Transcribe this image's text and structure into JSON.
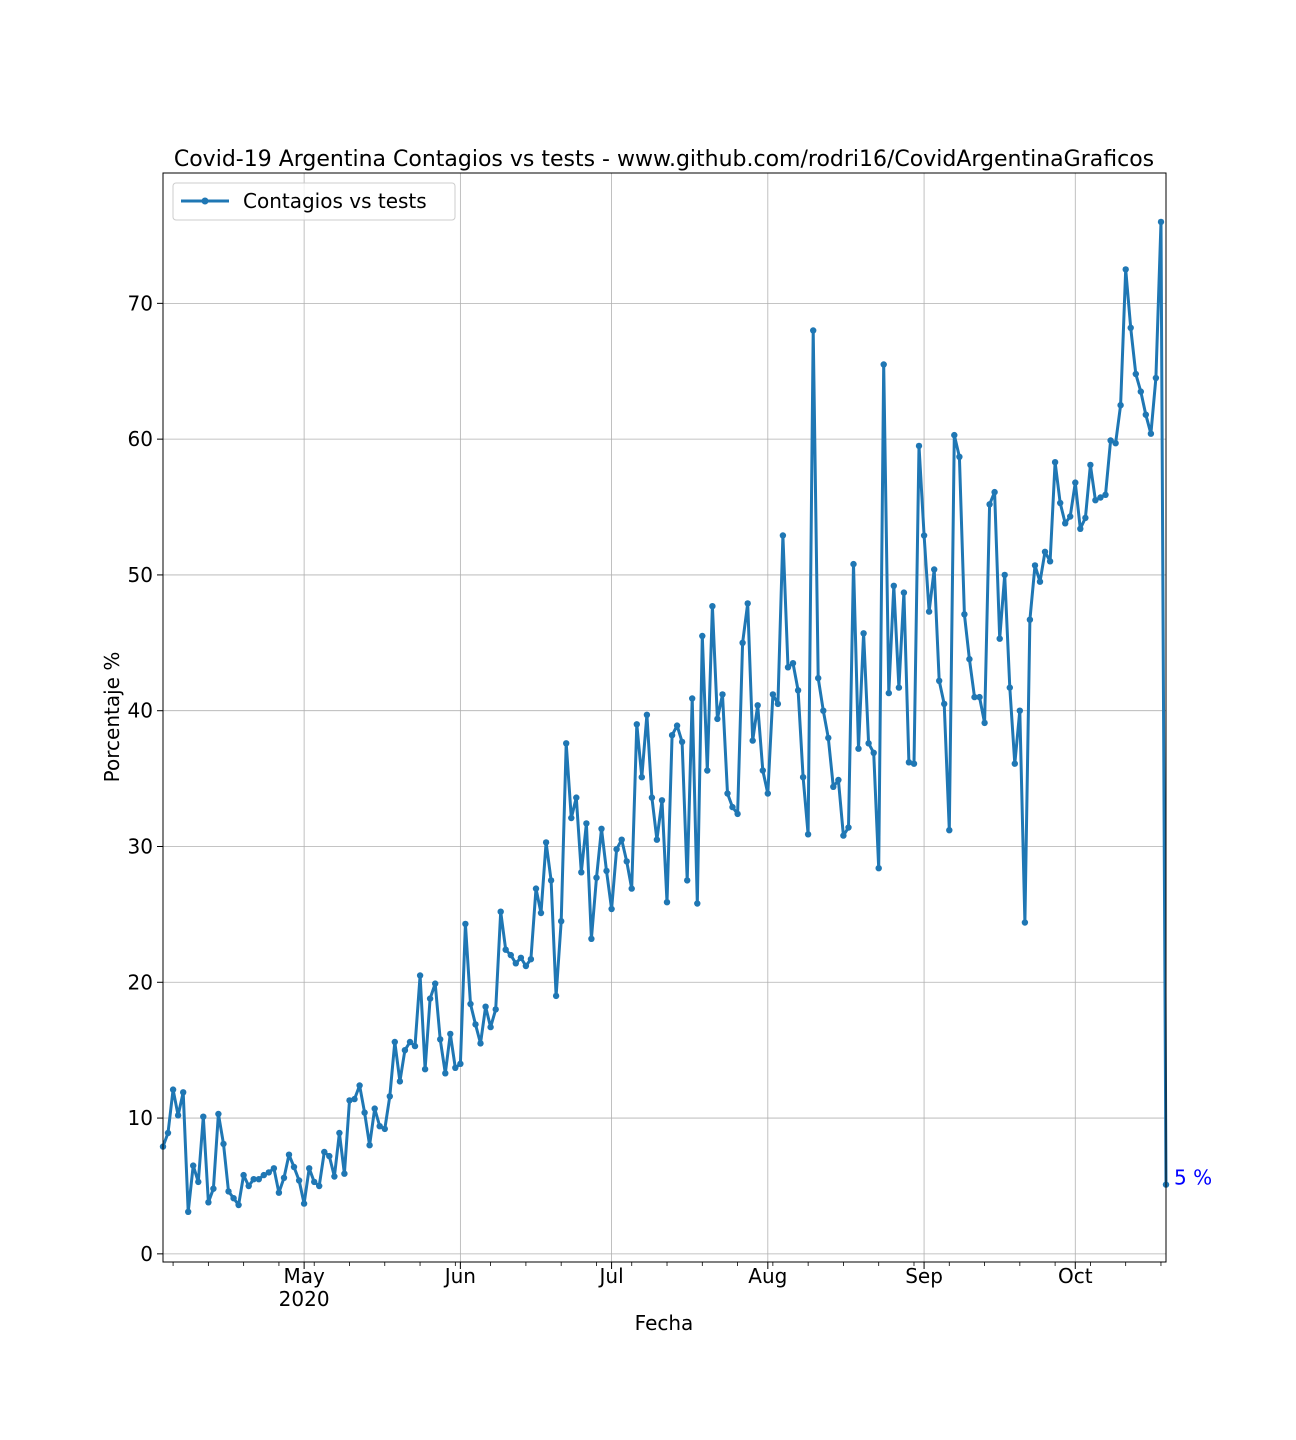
{
  "chart_data": {
    "type": "line",
    "title": "Covid-19 Argentina Contagios vs tests - www.github.com/rodri16/CovidArgentinaGraficos",
    "xlabel": "Fecha",
    "ylabel": "Porcentaje %",
    "x_start": "2020-04-03",
    "x_end": "2020-10-19",
    "ylim": [
      -0.6,
      79.6
    ],
    "yticks": [
      0,
      10,
      20,
      30,
      40,
      50,
      60,
      70
    ],
    "xticks": [
      {
        "date": "2020-05-01",
        "label": "May",
        "sublabel": "2020"
      },
      {
        "date": "2020-06-01",
        "label": "Jun",
        "sublabel": ""
      },
      {
        "date": "2020-07-01",
        "label": "Jul",
        "sublabel": ""
      },
      {
        "date": "2020-08-01",
        "label": "Aug",
        "sublabel": ""
      },
      {
        "date": "2020-09-01",
        "label": "Sep",
        "sublabel": ""
      },
      {
        "date": "2020-10-01",
        "label": "Oct",
        "sublabel": ""
      }
    ],
    "grid": true,
    "legend_position": "top-left",
    "series": [
      {
        "name": "Contagios vs tests",
        "color": "#1f77b4",
        "values": [
          7.9,
          8.9,
          12.1,
          10.2,
          11.9,
          3.1,
          6.5,
          5.3,
          10.1,
          3.8,
          4.8,
          10.3,
          8.1,
          4.6,
          4.1,
          3.6,
          5.8,
          5.0,
          5.5,
          5.5,
          5.8,
          6.0,
          6.3,
          4.5,
          5.6,
          7.3,
          6.4,
          5.4,
          3.7,
          6.3,
          5.3,
          5.0,
          7.5,
          7.2,
          5.7,
          8.9,
          5.9,
          11.3,
          11.4,
          12.4,
          10.4,
          8.0,
          10.7,
          9.4,
          9.2,
          11.6,
          15.6,
          12.7,
          15.0,
          15.6,
          15.3,
          20.5,
          13.6,
          18.8,
          19.9,
          15.8,
          13.3,
          16.2,
          13.7,
          14.0,
          24.3,
          18.4,
          16.9,
          15.5,
          18.2,
          16.7,
          18.0,
          25.2,
          22.4,
          22.0,
          21.4,
          21.8,
          21.2,
          21.7,
          26.9,
          25.1,
          30.3,
          27.5,
          19.0,
          24.5,
          37.6,
          32.1,
          33.6,
          28.1,
          31.7,
          23.2,
          27.7,
          31.3,
          28.2,
          25.4,
          29.8,
          30.5,
          28.9,
          26.9,
          39.0,
          35.1,
          39.7,
          33.6,
          30.5,
          33.4,
          25.9,
          38.2,
          38.9,
          37.7,
          27.5,
          40.9,
          25.8,
          45.5,
          35.6,
          47.7,
          39.4,
          41.2,
          33.9,
          32.9,
          32.4,
          45.0,
          47.9,
          37.8,
          40.4,
          35.6,
          33.9,
          41.2,
          40.5,
          52.9,
          43.2,
          43.5,
          41.5,
          35.1,
          30.9,
          68.0,
          42.4,
          40.0,
          38.0,
          34.4,
          34.9,
          30.8,
          31.4,
          50.8,
          37.2,
          45.7,
          37.6,
          36.9,
          28.4,
          65.5,
          41.3,
          49.2,
          41.7,
          48.7,
          36.2,
          36.1,
          59.5,
          52.9,
          47.3,
          50.4,
          42.2,
          40.5,
          31.2,
          60.3,
          58.7,
          47.1,
          43.8,
          41.0,
          41.0,
          39.1,
          55.2,
          56.1,
          45.3,
          50.0,
          41.7,
          36.1,
          40.0,
          24.4,
          46.7,
          50.7,
          49.5,
          51.7,
          51.0,
          58.3,
          55.3,
          53.8,
          54.3,
          56.8,
          53.4,
          54.2,
          58.1,
          55.5,
          55.7,
          55.9,
          59.9,
          59.7,
          62.5,
          72.5,
          68.2,
          64.8,
          63.5,
          61.8,
          60.4,
          64.5,
          76.0,
          5.1
        ]
      }
    ],
    "annotations": [
      {
        "text": "5 %",
        "date": "2020-10-19",
        "value": 5.1,
        "color": "#0000ff"
      }
    ]
  }
}
